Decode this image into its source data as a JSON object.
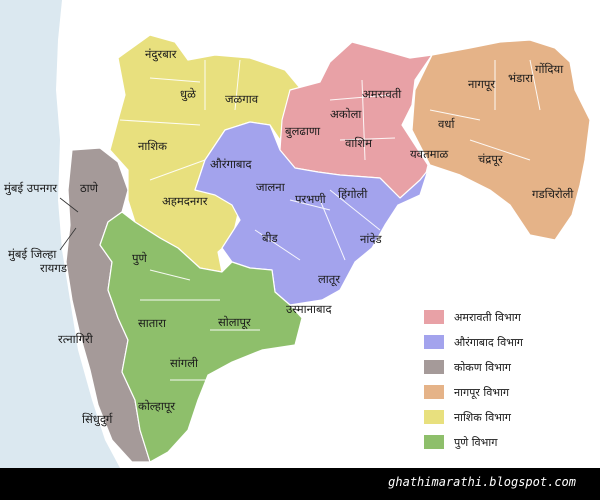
{
  "colors": {
    "sea": "#dbe8f0",
    "amravati": "#e8a1a6",
    "aurangabad": "#a3a3ed",
    "konkan": "#a59a99",
    "nagpur": "#e5b388",
    "nashik": "#e8e07e",
    "pune": "#8ebf6b"
  },
  "districts": {
    "nandurbar": "नंदुरबार",
    "dhule": "धुळे",
    "jalgaon": "जळगाव",
    "nashik": "नाशिक",
    "ahmednagar": "अहमदनगर",
    "amravati": "अमरावती",
    "akola": "अकोला",
    "buldhana": "बुलढाणा",
    "washim": "वाशिम",
    "yavatmal": "यवतमाळ",
    "nagpur": "नागपूर",
    "bhandara": "भंडारा",
    "gondia": "गोंदिया",
    "wardha": "वर्धा",
    "chandrapur": "चंद्रपूर",
    "gadchiroli": "गडचिरोली",
    "aurangabad": "औरंगाबाद",
    "jalna": "जालना",
    "parbhani": "परभणी",
    "hingoli": "हिंगोली",
    "beed": "बीड",
    "nanded": "नांदेड",
    "latur": "लातूर",
    "osmanabad": "उस्मानाबाद",
    "thane": "ठाणे",
    "mumbai_suburban": "मुंबई उपनगर",
    "mumbai_city": "मुंबई जिल्हा",
    "raigad": "रायगड",
    "ratnagiri": "रत्नागिरी",
    "sindhudurg": "सिंधुदुर्ग",
    "pune": "पुणे",
    "satara": "सातारा",
    "solapur": "सोलापूर",
    "sangli": "सांगली",
    "kolhapur": "कोल्हापूर"
  },
  "legend": [
    {
      "label": "अमरावती विभाग",
      "color": "#e8a1a6"
    },
    {
      "label": "औरंगाबाद विभाग",
      "color": "#a3a3ed"
    },
    {
      "label": "कोकण विभाग",
      "color": "#a59a99"
    },
    {
      "label": "नागपूर विभाग",
      "color": "#e5b388"
    },
    {
      "label": "नाशिक विभाग",
      "color": "#e8e07e"
    },
    {
      "label": "पुणे विभाग",
      "color": "#8ebf6b"
    }
  ],
  "footer": {
    "site": "ghathimarathi.blogspot.com"
  }
}
